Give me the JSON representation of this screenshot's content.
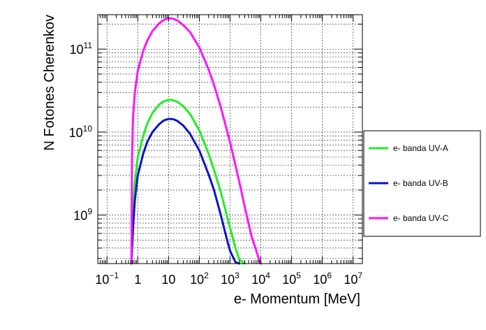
{
  "chart_data": {
    "type": "line",
    "xlabel": "e- Momentum [MeV]",
    "ylabel": "N Fotones Cherenkov",
    "xscale": "log",
    "yscale": "log",
    "xlim": [
      0.05,
      20000000
    ],
    "ylim": [
      260000000,
      260000000000
    ],
    "grid": true,
    "legend_placement": "right, outside plot",
    "x_ticks": [
      {
        "base": "10",
        "exp": "−1"
      },
      {
        "base": "1",
        "exp": ""
      },
      {
        "base": "10",
        "exp": ""
      },
      {
        "base": "10",
        "exp": "2"
      },
      {
        "base": "10",
        "exp": "3"
      },
      {
        "base": "10",
        "exp": "4"
      },
      {
        "base": "10",
        "exp": "5"
      },
      {
        "base": "10",
        "exp": "6"
      },
      {
        "base": "10",
        "exp": "7"
      }
    ],
    "y_ticks": [
      {
        "base": "10",
        "exp": "9"
      },
      {
        "base": "10",
        "exp": "10"
      },
      {
        "base": "10",
        "exp": "11"
      }
    ],
    "series": [
      {
        "name": "e- banda UV-A",
        "color": "#22ee22",
        "x": [
          0.62,
          0.68,
          0.8,
          1,
          1.5,
          2,
          3,
          5,
          7,
          10,
          12,
          15,
          20,
          30,
          50,
          100,
          200,
          300,
          500,
          1000,
          1500,
          2000,
          3000
        ],
        "y": [
          260000000.0,
          1000000000.0,
          2500000000.0,
          5000000000.0,
          9000000000.0,
          12500000000.0,
          17000000000.0,
          21500000000.0,
          23500000000.0,
          24500000000.0,
          24500000000.0,
          24000000000.0,
          23000000000.0,
          20500000000.0,
          16500000000.0,
          10500000000.0,
          5500000000.0,
          3500000000.0,
          1900000000.0,
          700000000.0,
          400000000.0,
          290000000.0,
          260000000.0
        ]
      },
      {
        "name": "e- banda UV-B",
        "color": "#0a14c8",
        "x": [
          0.62,
          0.7,
          0.8,
          1,
          1.5,
          2,
          3,
          5,
          7,
          10,
          12,
          15,
          20,
          30,
          50,
          100,
          200,
          300,
          500,
          800,
          1000,
          1500,
          2000
        ],
        "y": [
          260000000.0,
          700000000.0,
          1500000000.0,
          3000000000.0,
          5500000000.0,
          7500000000.0,
          10000000000.0,
          12500000000.0,
          13800000000.0,
          14400000000.0,
          14400000000.0,
          14200000000.0,
          13500000000.0,
          12000000000.0,
          9500000000.0,
          6000000000.0,
          3100000000.0,
          2000000000.0,
          1000000000.0,
          500000000.0,
          370000000.0,
          270000000.0,
          260000000.0
        ]
      },
      {
        "name": "e- banda UV-C",
        "color": "#ff14ff",
        "x": [
          0.62,
          0.65,
          0.7,
          0.8,
          1,
          1.5,
          2,
          3,
          5,
          7,
          10,
          12,
          15,
          20,
          30,
          50,
          100,
          200,
          300,
          500,
          1000,
          2000,
          3000,
          5000,
          7000,
          9000,
          10000
        ],
        "y": [
          260000000.0,
          5000000000.0,
          15000000000.0,
          30000000000.0,
          55000000000.0,
          95000000000.0,
          125000000000.0,
          165000000000.0,
          205000000000.0,
          225000000000.0,
          235000000000.0,
          235000000000.0,
          230000000000.0,
          220000000000.0,
          195000000000.0,
          160000000000.0,
          105000000000.0,
          57000000000.0,
          37000000000.0,
          20000000000.0,
          7500000000.0,
          2500000000.0,
          1250000000.0,
          550000000.0,
          380000000.0,
          280000000.0,
          260000000.0
        ]
      }
    ]
  }
}
